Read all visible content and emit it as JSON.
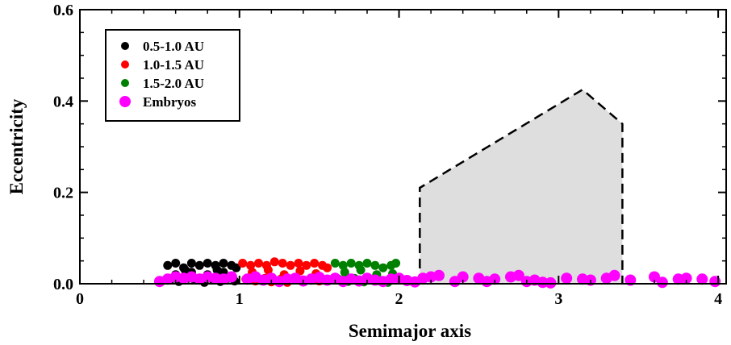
{
  "chart_data": {
    "type": "scatter",
    "title": "",
    "xlabel": "Semimajor axis",
    "ylabel": "Eccentricity",
    "xlim": [
      0,
      4.05
    ],
    "ylim": [
      0,
      0.6
    ],
    "x_ticks": [
      "0",
      "1",
      "2",
      "3",
      "4"
    ],
    "y_ticks": [
      "0.0",
      "0.2",
      "0.4",
      "0.6"
    ],
    "x_tick_values": [
      0,
      1,
      2,
      3,
      4
    ],
    "y_tick_values": [
      0,
      0.2,
      0.4,
      0.6
    ],
    "grid": false,
    "legend_position": "top-left",
    "shaded_region": {
      "points": [
        [
          2.13,
          0.0
        ],
        [
          2.13,
          0.21
        ],
        [
          3.15,
          0.425
        ],
        [
          3.4,
          0.35
        ],
        [
          3.4,
          0.0
        ]
      ],
      "fill": "#dedede",
      "stroke": "#000000",
      "style": "dashed"
    },
    "series": [
      {
        "name": "0.5-1.0 AU",
        "color": "#000000",
        "marker": "small-dot",
        "points": [
          [
            0.55,
            0.04
          ],
          [
            0.6,
            0.045
          ],
          [
            0.65,
            0.035
          ],
          [
            0.7,
            0.045
          ],
          [
            0.75,
            0.04
          ],
          [
            0.8,
            0.045
          ],
          [
            0.85,
            0.04
          ],
          [
            0.9,
            0.045
          ],
          [
            0.95,
            0.04
          ],
          [
            0.98,
            0.035
          ],
          [
            0.57,
            0.01
          ],
          [
            0.62,
            0.005
          ],
          [
            0.68,
            0.012
          ],
          [
            0.72,
            0.008
          ],
          [
            0.78,
            0.003
          ],
          [
            0.83,
            0.01
          ],
          [
            0.88,
            0.005
          ],
          [
            0.93,
            0.012
          ],
          [
            0.97,
            0.006
          ],
          [
            0.6,
            0.02
          ],
          [
            0.7,
            0.025
          ],
          [
            0.8,
            0.02
          ],
          [
            0.9,
            0.025
          ],
          [
            0.66,
            0.03
          ],
          [
            0.86,
            0.03
          ]
        ]
      },
      {
        "name": "1.0-1.5 AU",
        "color": "#ff0000",
        "marker": "small-dot",
        "points": [
          [
            1.02,
            0.045
          ],
          [
            1.07,
            0.04
          ],
          [
            1.12,
            0.045
          ],
          [
            1.17,
            0.04
          ],
          [
            1.22,
            0.048
          ],
          [
            1.27,
            0.045
          ],
          [
            1.32,
            0.04
          ],
          [
            1.37,
            0.045
          ],
          [
            1.42,
            0.04
          ],
          [
            1.47,
            0.045
          ],
          [
            1.52,
            0.04
          ],
          [
            1.55,
            0.035
          ],
          [
            1.04,
            0.01
          ],
          [
            1.1,
            0.006
          ],
          [
            1.16,
            0.012
          ],
          [
            1.2,
            0.004
          ],
          [
            1.26,
            0.01
          ],
          [
            1.3,
            0.003
          ],
          [
            1.36,
            0.009
          ],
          [
            1.4,
            0.005
          ],
          [
            1.46,
            0.012
          ],
          [
            1.5,
            0.006
          ],
          [
            1.08,
            0.025
          ],
          [
            1.18,
            0.03
          ],
          [
            1.28,
            0.02
          ],
          [
            1.38,
            0.028
          ],
          [
            1.48,
            0.022
          ]
        ]
      },
      {
        "name": "1.5-2.0 AU",
        "color": "#008000",
        "marker": "small-dot",
        "points": [
          [
            1.6,
            0.045
          ],
          [
            1.65,
            0.04
          ],
          [
            1.7,
            0.045
          ],
          [
            1.75,
            0.04
          ],
          [
            1.8,
            0.045
          ],
          [
            1.85,
            0.04
          ],
          [
            1.9,
            0.035
          ],
          [
            1.95,
            0.04
          ],
          [
            1.98,
            0.045
          ],
          [
            1.62,
            0.01
          ],
          [
            1.68,
            0.005
          ],
          [
            1.72,
            0.012
          ],
          [
            1.78,
            0.004
          ],
          [
            1.83,
            0.01
          ],
          [
            1.88,
            0.006
          ],
          [
            1.93,
            0.003
          ],
          [
            1.66,
            0.025
          ],
          [
            1.76,
            0.03
          ],
          [
            1.86,
            0.02
          ],
          [
            1.96,
            0.022
          ]
        ]
      },
      {
        "name": "Embryos",
        "color": "#ff00ff",
        "marker": "large-dot",
        "points": [
          [
            0.5,
            0.005
          ],
          [
            0.55,
            0.01
          ],
          [
            0.6,
            0.015
          ],
          [
            0.65,
            0.012
          ],
          [
            0.7,
            0.015
          ],
          [
            0.75,
            0.01
          ],
          [
            0.8,
            0.015
          ],
          [
            0.85,
            0.012
          ],
          [
            0.9,
            0.01
          ],
          [
            0.95,
            0.015
          ],
          [
            1.05,
            0.01
          ],
          [
            1.1,
            0.015
          ],
          [
            1.15,
            0.008
          ],
          [
            1.2,
            0.012
          ],
          [
            1.25,
            0.005
          ],
          [
            1.3,
            0.01
          ],
          [
            1.35,
            0.012
          ],
          [
            1.4,
            0.006
          ],
          [
            1.45,
            0.01
          ],
          [
            1.5,
            0.014
          ],
          [
            1.55,
            0.008
          ],
          [
            1.6,
            0.012
          ],
          [
            1.65,
            0.005
          ],
          [
            1.7,
            0.01
          ],
          [
            1.75,
            0.006
          ],
          [
            1.8,
            0.012
          ],
          [
            1.85,
            0.008
          ],
          [
            1.9,
            0.005
          ],
          [
            1.95,
            0.01
          ],
          [
            2.0,
            0.012
          ],
          [
            2.05,
            0.007
          ],
          [
            2.1,
            0.004
          ],
          [
            2.15,
            0.012
          ],
          [
            2.2,
            0.015
          ],
          [
            2.25,
            0.018
          ],
          [
            2.35,
            0.005
          ],
          [
            2.4,
            0.015
          ],
          [
            2.5,
            0.012
          ],
          [
            2.55,
            0.005
          ],
          [
            2.6,
            0.01
          ],
          [
            2.7,
            0.015
          ],
          [
            2.75,
            0.018
          ],
          [
            2.8,
            0.005
          ],
          [
            2.85,
            0.008
          ],
          [
            2.9,
            0.003
          ],
          [
            2.95,
            0.002
          ],
          [
            3.05,
            0.012
          ],
          [
            3.15,
            0.01
          ],
          [
            3.2,
            0.008
          ],
          [
            3.3,
            0.012
          ],
          [
            3.35,
            0.018
          ],
          [
            3.45,
            0.008
          ],
          [
            3.6,
            0.015
          ],
          [
            3.65,
            0.003
          ],
          [
            3.75,
            0.01
          ],
          [
            3.8,
            0.012
          ],
          [
            3.9,
            0.01
          ],
          [
            3.98,
            0.005
          ]
        ]
      }
    ]
  }
}
